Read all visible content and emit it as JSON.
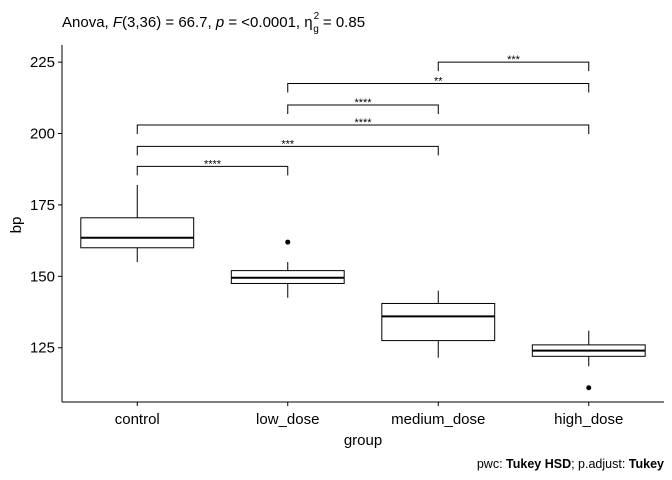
{
  "title": {
    "anova_label": "Anova, ",
    "f_symbol": "F",
    "f_value": "(3,36) = 66.7, ",
    "p_symbol": "p",
    "p_value": " = <0.0001, η",
    "eta_sup": "2",
    "eta_sub": "g",
    "eta_value": " = 0.85"
  },
  "caption": {
    "pwc_label": "pwc: ",
    "pwc_method": "Tukey HSD",
    "sep": "; p.adjust: ",
    "adjust_method": "Tukey"
  },
  "chart_data": {
    "type": "box",
    "xlabel": "group",
    "ylabel": "bp",
    "categories": [
      "control",
      "low_dose",
      "medium_dose",
      "high_dose"
    ],
    "ylim": [
      106,
      231
    ],
    "y_ticks": [
      125,
      150,
      175,
      200,
      225
    ],
    "grid": false,
    "boxes": [
      {
        "group": "control",
        "whisker_low": 155,
        "q1": 160,
        "median": 163.5,
        "q3": 170.5,
        "whisker_high": 182,
        "outliers": []
      },
      {
        "group": "low_dose",
        "whisker_low": 142.5,
        "q1": 147.5,
        "median": 149.5,
        "q3": 152,
        "whisker_high": 155,
        "outliers": [
          162
        ]
      },
      {
        "group": "medium_dose",
        "whisker_low": 121.5,
        "q1": 127.5,
        "median": 136,
        "q3": 140.5,
        "whisker_high": 145,
        "outliers": []
      },
      {
        "group": "high_dose",
        "whisker_low": 118.5,
        "q1": 122,
        "median": 124,
        "q3": 126,
        "whisker_high": 131,
        "outliers": [
          111
        ]
      }
    ],
    "comparisons": [
      {
        "from": "control",
        "to": "low_dose",
        "y": 188.5,
        "label": "****"
      },
      {
        "from": "control",
        "to": "medium_dose",
        "y": 195.5,
        "label": "***"
      },
      {
        "from": "control",
        "to": "high_dose",
        "y": 203,
        "label": "****"
      },
      {
        "from": "low_dose",
        "to": "medium_dose",
        "y": 210,
        "label": "****"
      },
      {
        "from": "low_dose",
        "to": "high_dose",
        "y": 217.5,
        "label": "**"
      },
      {
        "from": "medium_dose",
        "to": "high_dose",
        "y": 225,
        "label": "***"
      }
    ]
  }
}
